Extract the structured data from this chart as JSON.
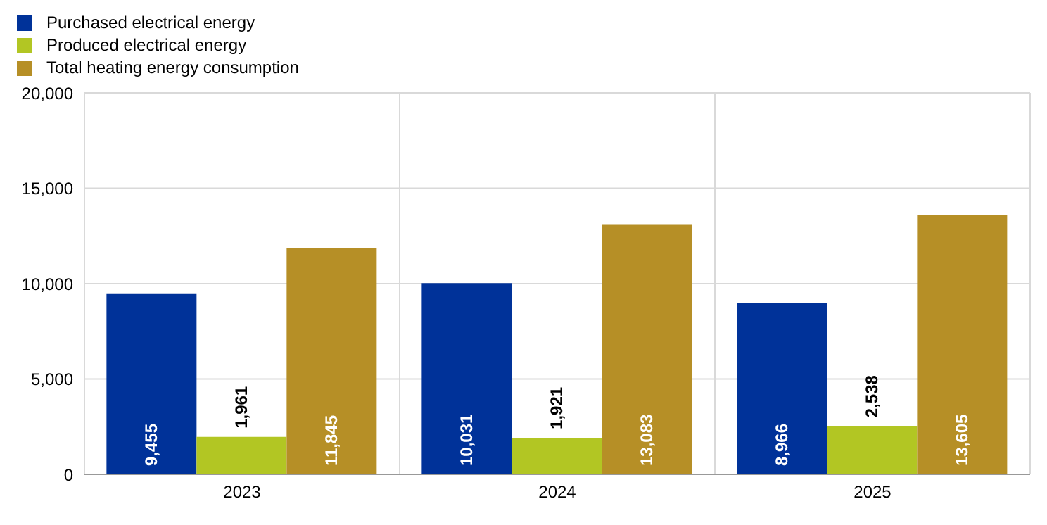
{
  "chart_data": {
    "type": "bar",
    "categories": [
      "2023",
      "2024",
      "2025"
    ],
    "series": [
      {
        "name": "Purchased electrical energy",
        "color": "#003299",
        "values": [
          9455,
          10031,
          8966
        ],
        "value_labels": [
          "9,455",
          "10,031",
          "8,966"
        ]
      },
      {
        "name": "Produced electrical energy",
        "color": "#b2c623",
        "values": [
          1961,
          1921,
          2538
        ],
        "value_labels": [
          "1,961",
          "1,921",
          "2,538"
        ]
      },
      {
        "name": "Total heating energy consumption",
        "color": "#b68f26",
        "values": [
          11845,
          13083,
          13605
        ],
        "value_labels": [
          "11,845",
          "13,083",
          "13,605"
        ]
      }
    ],
    "ylim": [
      0,
      20000
    ],
    "yticks": [
      0,
      {
        "value": 5000,
        "label": "5,000"
      },
      {
        "value": 10000,
        "label": "10,000"
      },
      {
        "value": 15000,
        "label": "15,000"
      },
      {
        "value": 20000,
        "label": "20,000"
      }
    ],
    "grid": true,
    "legend": "top left"
  }
}
